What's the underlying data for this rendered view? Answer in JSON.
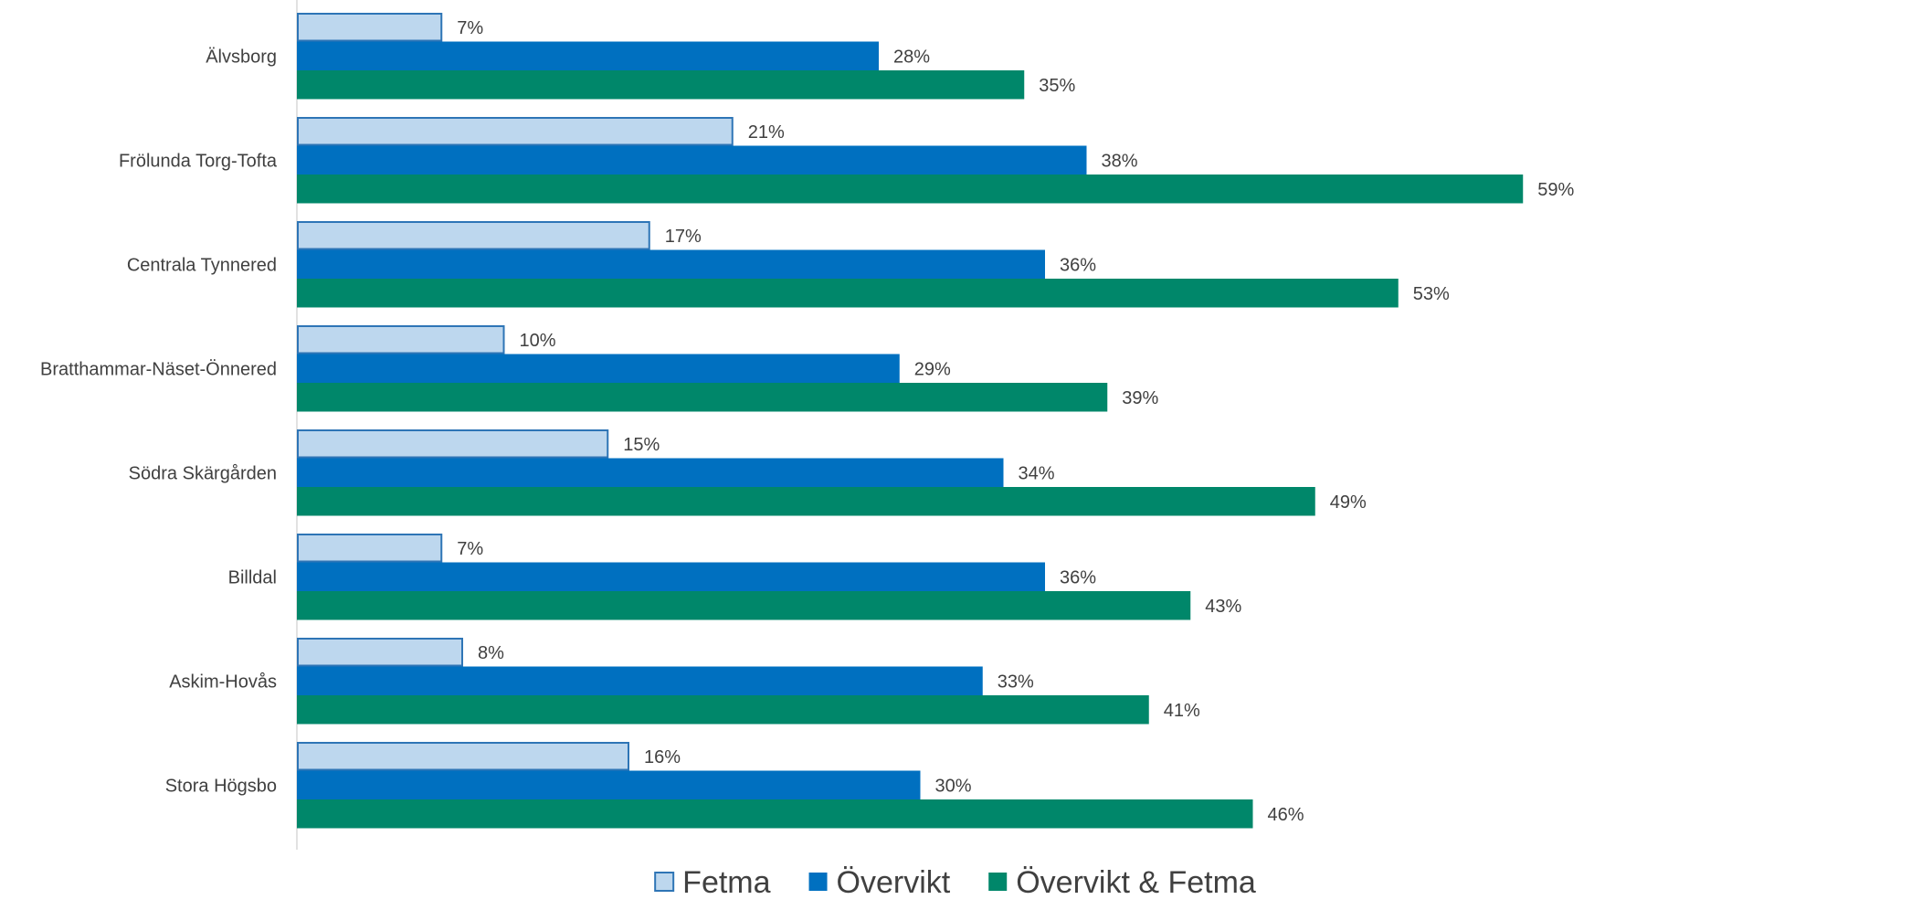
{
  "chart_data": {
    "type": "bar",
    "orientation": "horizontal",
    "categories": [
      "Älvsborg",
      "Frölunda Torg-Tofta",
      "Centrala Tynnered",
      "Bratthammar-Näset-Önnered",
      "Södra Skärgården",
      "Billdal",
      "Askim-Hovås",
      "Stora Högsbo"
    ],
    "series": [
      {
        "name": "Fetma",
        "values": [
          7,
          21,
          17,
          10,
          15,
          7,
          8,
          16
        ],
        "color": "#BDD7EE",
        "border": "#2E75B6"
      },
      {
        "name": "Övervikt",
        "values": [
          28,
          38,
          36,
          29,
          34,
          36,
          33,
          30
        ],
        "color": "#0070C0"
      },
      {
        "name": "Övervikt & Fetma",
        "values": [
          35,
          59,
          53,
          39,
          49,
          43,
          41,
          46
        ],
        "color": "#00876A"
      }
    ],
    "value_suffix": "%",
    "xlim": [
      0,
      60
    ],
    "grid": false,
    "legend_position": "bottom"
  }
}
